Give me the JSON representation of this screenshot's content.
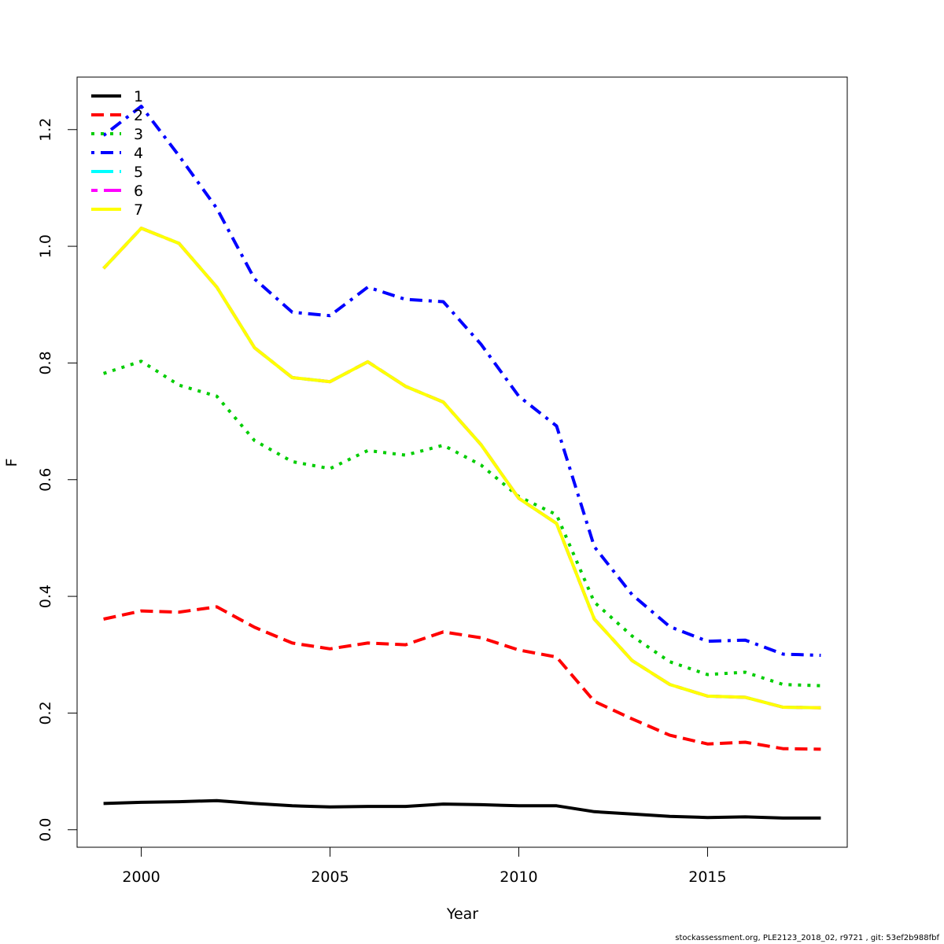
{
  "chart_data": {
    "type": "line",
    "title": "",
    "xlabel": "Year",
    "ylabel": "F",
    "xlim": [
      1998.3,
      2018.7
    ],
    "ylim": [
      -0.03,
      1.29
    ],
    "x_ticks": [
      2000,
      2005,
      2010,
      2015
    ],
    "x_tick_labels": [
      "2000",
      "2005",
      "2010",
      "2015"
    ],
    "y_ticks": [
      0.0,
      0.2,
      0.4,
      0.6,
      0.8,
      1.0,
      1.2
    ],
    "y_tick_labels": [
      "0.0",
      "0.2",
      "0.4",
      "0.6",
      "0.8",
      "1.0",
      "1.2"
    ],
    "grid": false,
    "legend_position": "top-left",
    "x": [
      1999,
      2000,
      2001,
      2002,
      2003,
      2004,
      2005,
      2006,
      2007,
      2008,
      2009,
      2010,
      2011,
      2012,
      2013,
      2014,
      2015,
      2016,
      2017,
      2018
    ],
    "series": [
      {
        "name": "1",
        "color": "#000000",
        "dash": "solid",
        "values": [
          0.045,
          0.047,
          0.048,
          0.05,
          0.045,
          0.041,
          0.039,
          0.04,
          0.04,
          0.044,
          0.043,
          0.041,
          0.041,
          0.031,
          0.027,
          0.023,
          0.021,
          0.022,
          0.02,
          0.02
        ]
      },
      {
        "name": "2",
        "color": "#ff0000",
        "dash": "dashed",
        "values": [
          0.361,
          0.375,
          0.373,
          0.382,
          0.347,
          0.32,
          0.31,
          0.32,
          0.317,
          0.339,
          0.329,
          0.308,
          0.296,
          0.22,
          0.19,
          0.162,
          0.147,
          0.15,
          0.139,
          0.138
        ]
      },
      {
        "name": "3",
        "color": "#00cd00",
        "dash": "dotted",
        "values": [
          0.782,
          0.803,
          0.762,
          0.743,
          0.667,
          0.631,
          0.619,
          0.65,
          0.642,
          0.659,
          0.625,
          0.571,
          0.54,
          0.39,
          0.332,
          0.288,
          0.266,
          0.27,
          0.249,
          0.247
        ]
      },
      {
        "name": "4",
        "color": "#0000ff",
        "dash": "dotdash",
        "values": [
          1.19,
          1.24,
          1.155,
          1.065,
          0.944,
          0.887,
          0.881,
          0.93,
          0.909,
          0.905,
          0.832,
          0.743,
          0.692,
          0.485,
          0.403,
          0.348,
          0.323,
          0.325,
          0.301,
          0.299
        ]
      },
      {
        "name": "5",
        "color": "#00ffff",
        "dash": "longdash",
        "values": [
          0.962,
          1.031,
          1.005,
          0.93,
          0.826,
          0.775,
          0.768,
          0.802,
          0.76,
          0.733,
          0.66,
          0.568,
          0.525,
          0.361,
          0.29,
          0.249,
          0.229,
          0.227,
          0.21,
          0.209
        ]
      },
      {
        "name": "6",
        "color": "#ff00ff",
        "dash": "twodash",
        "values": [
          0.962,
          1.031,
          1.005,
          0.93,
          0.826,
          0.775,
          0.768,
          0.802,
          0.76,
          0.733,
          0.66,
          0.568,
          0.525,
          0.361,
          0.29,
          0.249,
          0.229,
          0.227,
          0.21,
          0.209
        ]
      },
      {
        "name": "7",
        "color": "#ffff00",
        "dash": "solid",
        "values": [
          0.962,
          1.031,
          1.005,
          0.93,
          0.826,
          0.775,
          0.768,
          0.802,
          0.76,
          0.733,
          0.66,
          0.568,
          0.525,
          0.361,
          0.29,
          0.249,
          0.229,
          0.227,
          0.21,
          0.209
        ]
      }
    ]
  },
  "footer": {
    "text": "stockassessment.org, PLE2123_2018_02, r9721 , git: 53ef2b988fbf"
  }
}
